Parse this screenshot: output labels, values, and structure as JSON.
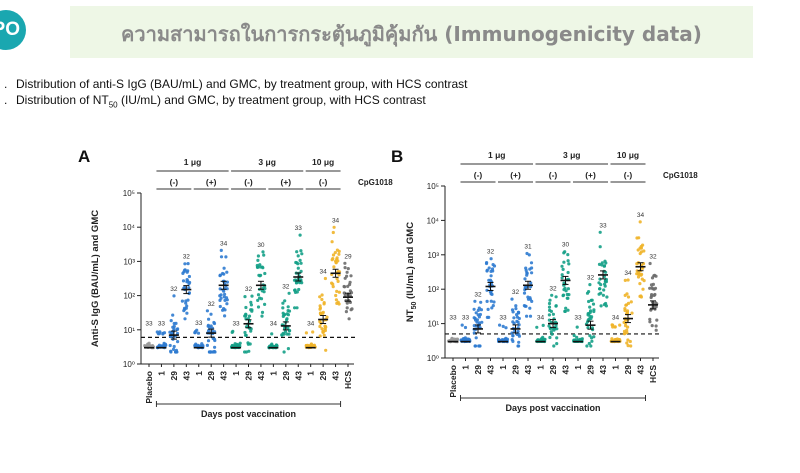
{
  "logo": {
    "text": "PO"
  },
  "title": {
    "text": "ความสามารถในการกระตุ้นภูมิคุ้มกัน (Immunogenicity data)"
  },
  "captions": [
    {
      "num": ".",
      "text": "Distribution of anti-S IgG (BAU/mL) and GMC, by treatment group, with HCS contrast"
    },
    {
      "num": ".",
      "pre": "Distribution of NT",
      "sub": "50",
      "post": " (IU/mL) and GMC, by treatment group, with HCS contrast"
    }
  ],
  "panels": [
    {
      "letter": "A",
      "ylabel": "Anti-S IgG (BAU/mL) and GMC",
      "ylabel_sub": "",
      "ylabel_post": "",
      "ytick_labels": [
        "10⁰",
        "10¹",
        "10²",
        "10³",
        "10⁴",
        "10⁵"
      ],
      "xlabel": "Days post vaccination",
      "dose_groups": [
        "1 μg",
        "3 μg",
        "10 μg"
      ],
      "adjuvant_groups": [
        "(-)",
        "(+)",
        "(-)",
        "(+)",
        "(-)"
      ],
      "cpg_label": "CpG1018"
    },
    {
      "letter": "B",
      "ylabel": "NT",
      "ylabel_sub": "50",
      "ylabel_post": " (IU/mL) and GMC",
      "ytick_labels": [
        "10⁰",
        "10¹",
        "10²",
        "10³",
        "10⁴",
        "10⁵"
      ],
      "xlabel": "Days post vaccination",
      "dose_groups": [
        "1 μg",
        "3 μg",
        "10 μg"
      ],
      "adjuvant_groups": [
        "(-)",
        "(+)",
        "(-)",
        "(+)",
        "(-)"
      ],
      "cpg_label": "CpG1018"
    }
  ],
  "chart_data": [
    {
      "type": "scatter",
      "title": "",
      "xlabel": "Days post vaccination",
      "ylabel": "Anti-S IgG (BAU/mL) and GMC",
      "yscale": "log",
      "ylim": [
        1,
        100000
      ],
      "categories": [
        "Placebo",
        "1",
        "29",
        "43",
        "1",
        "29",
        "43",
        "1",
        "29",
        "43",
        "1",
        "29",
        "43",
        "1",
        "29",
        "43",
        "HCS"
      ],
      "group_colors": [
        "#9a9a9a",
        "#2f7bd0",
        "#2f7bd0",
        "#2f7bd0",
        "#2f7bd0",
        "#2f7bd0",
        "#2f7bd0",
        "#14a087",
        "#14a087",
        "#14a087",
        "#14a087",
        "#14a087",
        "#14a087",
        "#f0b429",
        "#f0b429",
        "#f0b429",
        "#6b6b6b"
      ],
      "n_labels": [
        "33",
        "33",
        "32",
        "32",
        "33",
        "32",
        "34",
        "33",
        "32",
        "30",
        "34",
        "32",
        "33",
        "34",
        "34",
        "34",
        "29"
      ],
      "gmc": [
        3,
        3,
        7,
        150,
        3,
        8,
        200,
        3,
        15,
        200,
        3,
        13,
        350,
        3,
        20,
        450,
        90
      ],
      "lloq": 6,
      "grid": false,
      "legend": "none"
    },
    {
      "type": "scatter",
      "title": "",
      "xlabel": "Days post vaccination",
      "ylabel": "NT50 (IU/mL) and GMC",
      "yscale": "log",
      "ylim": [
        1,
        100000
      ],
      "categories": [
        "Placebo",
        "1",
        "29",
        "43",
        "1",
        "29",
        "43",
        "1",
        "29",
        "43",
        "1",
        "29",
        "43",
        "1",
        "29",
        "43",
        "HCS"
      ],
      "group_colors": [
        "#9a9a9a",
        "#2f7bd0",
        "#2f7bd0",
        "#2f7bd0",
        "#2f7bd0",
        "#2f7bd0",
        "#2f7bd0",
        "#14a087",
        "#14a087",
        "#14a087",
        "#14a087",
        "#14a087",
        "#14a087",
        "#f0b429",
        "#f0b429",
        "#f0b429",
        "#6b6b6b"
      ],
      "n_labels": [
        "33",
        "33",
        "32",
        "32",
        "33",
        "32",
        "31",
        "34",
        "32",
        "30",
        "33",
        "32",
        "33",
        "34",
        "34",
        "34",
        "32"
      ],
      "gmc": [
        3,
        3,
        7,
        120,
        3,
        7,
        130,
        3,
        10,
        180,
        3,
        9,
        260,
        3,
        14,
        450,
        35
      ],
      "lloq": 5,
      "grid": false,
      "legend": "none"
    }
  ]
}
